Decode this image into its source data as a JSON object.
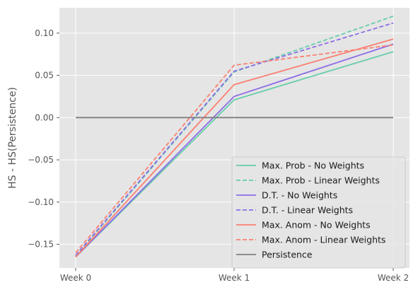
{
  "chart_data": {
    "type": "line",
    "title": "",
    "xlabel": "",
    "ylabel": "HS - HS(Persistence)",
    "categories": [
      "Week 0",
      "Week 1",
      "Week 2"
    ],
    "ylim": [
      -0.178,
      0.13
    ],
    "yticks": [
      -0.15,
      -0.1,
      -0.05,
      0.0,
      0.05,
      0.1
    ],
    "ytick_labels": [
      "−0.15",
      "−0.10",
      "−0.05",
      "0.00",
      "0.05",
      "0.10"
    ],
    "grid": true,
    "legend_position": "lower-right",
    "series": [
      {
        "name": "Max. Prob - No Weights",
        "color": "#66cdaa",
        "dash": "solid",
        "values": [
          -0.165,
          0.021,
          0.078
        ]
      },
      {
        "name": "Max. Prob - Linear Weights",
        "color": "#66cdaa",
        "dash": "dashed",
        "values": [
          -0.164,
          0.054,
          0.12
        ]
      },
      {
        "name": "D.T. - No Weights",
        "color": "#8c6de6",
        "dash": "solid",
        "values": [
          -0.165,
          0.025,
          0.087
        ]
      },
      {
        "name": "D.T. - Linear Weights",
        "color": "#8c6de6",
        "dash": "dashed",
        "values": [
          -0.163,
          0.055,
          0.112
        ]
      },
      {
        "name": "Max. Anom - No Weights",
        "color": "#fa8072",
        "dash": "solid",
        "values": [
          -0.165,
          0.039,
          0.093
        ]
      },
      {
        "name": "Max. Anom - Linear Weights",
        "color": "#fa8072",
        "dash": "dashed",
        "values": [
          -0.16,
          0.062,
          0.086
        ]
      },
      {
        "name": "Persistence",
        "color": "#808080",
        "dash": "solid",
        "values": [
          0.0,
          0.0,
          0.0
        ]
      }
    ]
  }
}
